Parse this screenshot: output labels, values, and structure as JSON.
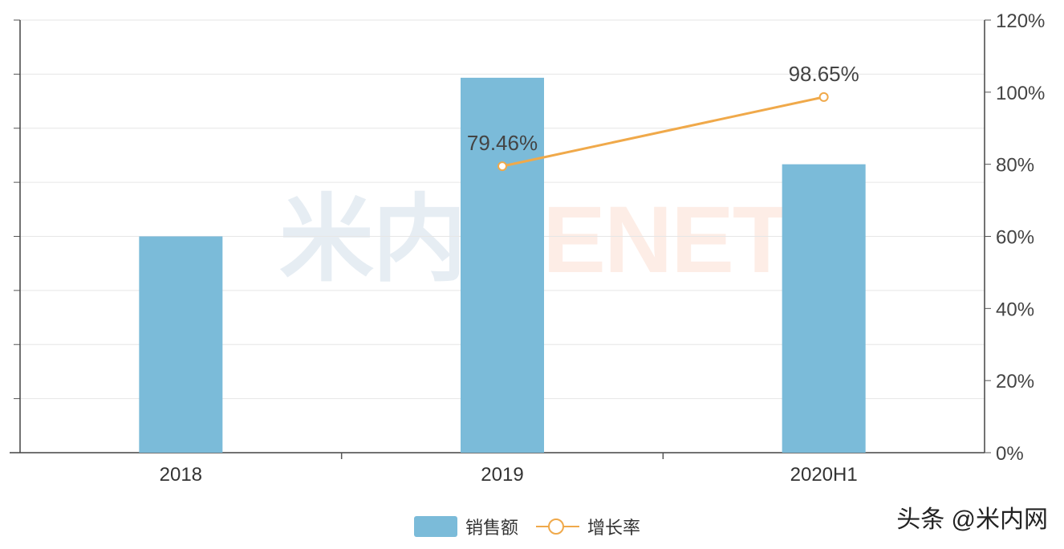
{
  "chart_data": {
    "type": "bar",
    "categories": [
      "2018",
      "2019",
      "2020H1"
    ],
    "series": [
      {
        "name": "销售额",
        "type": "bar",
        "axis": "left",
        "values": [
          6,
          10.4,
          8
        ],
        "color": "#7bbbd9"
      },
      {
        "name": "增长率",
        "type": "line",
        "axis": "right",
        "values": [
          null,
          79.46,
          98.65
        ],
        "labels": [
          "",
          "79.46%",
          "98.65%"
        ],
        "color": "#f0a94a"
      }
    ],
    "left_axis": {
      "ylim": [
        0,
        12
      ],
      "tick_labels": []
    },
    "right_axis": {
      "ylim": [
        0,
        120
      ],
      "ticks": [
        0,
        20,
        40,
        60,
        80,
        100,
        120
      ],
      "tick_labels": [
        "0%",
        "20%",
        "40%",
        "60%",
        "80%",
        "100%",
        "120%"
      ]
    },
    "grid": true,
    "legend": "bottom-center"
  },
  "legend": {
    "bar_label": "销售额",
    "line_label": "增长率"
  },
  "watermark": {
    "part1": "米内",
    "part2": "MENET"
  },
  "source": "头条 @米内网"
}
